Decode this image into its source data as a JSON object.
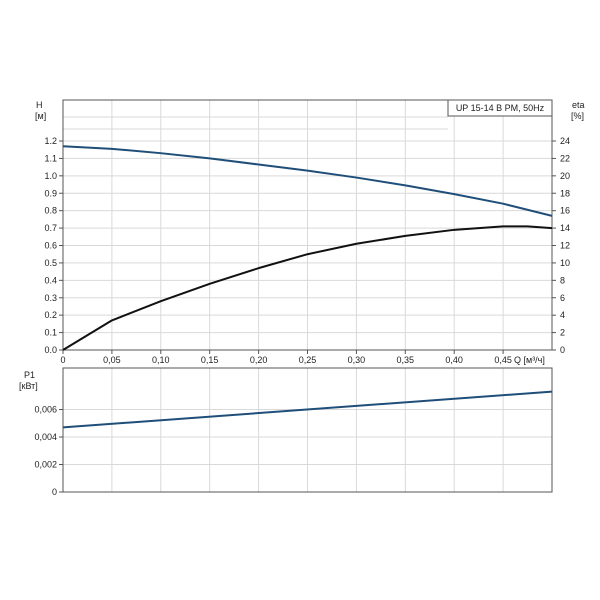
{
  "colors": {
    "head_curve": "#1f4e79",
    "eta_curve": "#111111",
    "power_curve": "#1f4e79",
    "grid": "#d9d9d9",
    "frame": "#555555",
    "text": "#222222"
  },
  "chart_data": [
    {
      "type": "line",
      "title": "UP 15-14 B PM, 50Hz",
      "xlabel": "Q [м³/ч]",
      "ylabel_left": "H\n[м]",
      "ylabel_right": "eta\n[%]",
      "grid": true,
      "xlim": [
        0,
        0.5
      ],
      "ylim_left": [
        0,
        1.2
      ],
      "ylim_right": [
        0,
        24
      ],
      "x_ticks": [
        "0",
        "0,05",
        "0,10",
        "0,15",
        "0,20",
        "0,25",
        "0,30",
        "0,35",
        "0,40",
        "0,45"
      ],
      "y_ticks_left": [
        "0.0",
        "0.1",
        "0.2",
        "0.3",
        "0.4",
        "0.5",
        "0.6",
        "0.7",
        "0.8",
        "0.9",
        "1.0",
        "1.1",
        "1.2"
      ],
      "y_ticks_right": [
        "0",
        "2",
        "4",
        "6",
        "8",
        "10",
        "12",
        "14",
        "16",
        "18",
        "20",
        "22",
        "24"
      ],
      "series": [
        {
          "axis": "left",
          "x": [
            0,
            0.05,
            0.1,
            0.15,
            0.2,
            0.25,
            0.3,
            0.35,
            0.4,
            0.45,
            0.5
          ],
          "y": [
            1.17,
            1.155,
            1.13,
            1.1,
            1.065,
            1.03,
            0.99,
            0.945,
            0.895,
            0.84,
            0.77
          ]
        },
        {
          "axis": "right",
          "x": [
            0,
            0.05,
            0.1,
            0.15,
            0.2,
            0.25,
            0.3,
            0.35,
            0.4,
            0.45,
            0.475,
            0.5
          ],
          "y": [
            0,
            3.4,
            5.6,
            7.6,
            9.4,
            11.0,
            12.2,
            13.1,
            13.8,
            14.2,
            14.2,
            14.0
          ]
        }
      ]
    },
    {
      "type": "line",
      "ylabel": "P1\n[кВт]",
      "grid": true,
      "xlim": [
        0,
        0.5
      ],
      "ylim": [
        0,
        0.008
      ],
      "y_ticks": [
        "0",
        "0,002",
        "0,004",
        "0,006"
      ],
      "series": [
        {
          "x": [
            0,
            0.5
          ],
          "y": [
            0.0047,
            0.0073
          ]
        }
      ]
    }
  ]
}
